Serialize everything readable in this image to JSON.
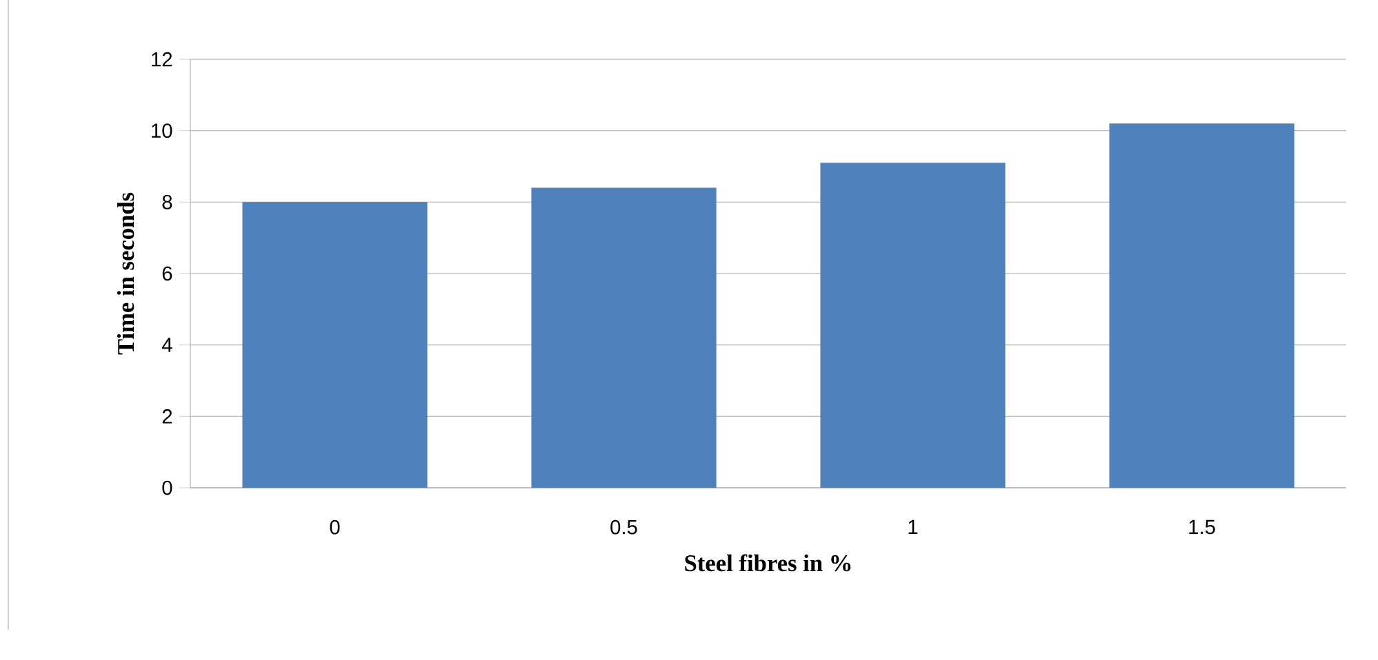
{
  "chart_data": {
    "type": "bar",
    "xlabel": "Steel fibres in %",
    "ylabel": "Time in seconds",
    "categories": [
      "0",
      "0.5",
      "1",
      "1.5"
    ],
    "values": [
      8.0,
      8.4,
      9.1,
      10.2
    ],
    "color": "#4f81bd",
    "ylim": [
      0,
      12
    ],
    "yticks": [
      0,
      2,
      4,
      6,
      8,
      10,
      12
    ],
    "grid": "y"
  }
}
